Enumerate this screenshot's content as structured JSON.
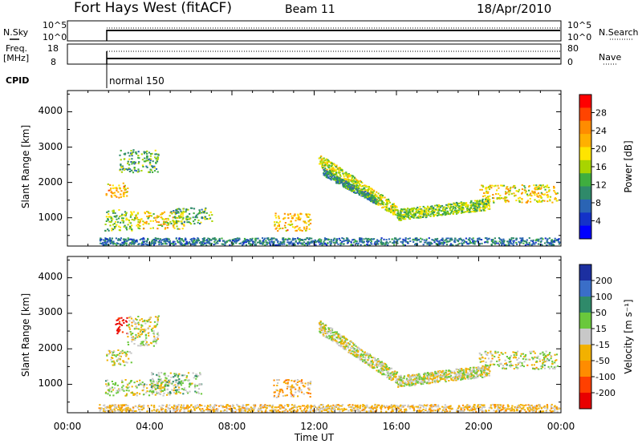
{
  "header": {
    "station": "Fort Hays West (fitACF)",
    "beam": "Beam 11",
    "date": "18/Apr/2010"
  },
  "top_panels": {
    "nsky_label": "N.Sky",
    "nsky_ticks": [
      "10^5",
      "10^0"
    ],
    "nsearch_label": "N.Search",
    "nsearch_ticks": [
      "10^5",
      "10^0"
    ],
    "freq_label_1": "Freq.",
    "freq_label_2": "[MHz]",
    "freq_ticks": [
      "18",
      "8"
    ],
    "nave_label": "Nave",
    "nave_ticks": [
      "80",
      "0"
    ],
    "cpid_label": "CPID",
    "cpid_value": "normal 150"
  },
  "time_axis": {
    "label": "Time UT",
    "ticks": [
      "00:00",
      "04:00",
      "08:00",
      "12:00",
      "16:00",
      "20:00",
      "00:00"
    ]
  },
  "colorbars": {
    "power": {
      "label": "Power [dB]",
      "ticks": [
        "28",
        "24",
        "20",
        "16",
        "12",
        "8",
        "4"
      ],
      "colors": [
        "#ff0000",
        "#ff4400",
        "#ff8c00",
        "#ffb000",
        "#ffe400",
        "#a8d400",
        "#3fae3f",
        "#2f8a6a",
        "#2a64b4",
        "#1432c8",
        "#0000ff"
      ]
    },
    "velocity": {
      "label": "Velocity [m s⁻¹]",
      "ticks": [
        "200",
        "100",
        "50",
        "15",
        "-15",
        "-50",
        "-100",
        "-200"
      ],
      "colors": [
        "#1c2fa0",
        "#3a6ec8",
        "#2f8a6a",
        "#6ac83c",
        "#c8c8c8",
        "#f2b100",
        "#ff8c00",
        "#ff4000",
        "#e80000"
      ]
    }
  },
  "chart_data": [
    {
      "type": "heatmap",
      "panel": "power",
      "ylabel": "Slant Range [km]",
      "yticks": [
        "4000",
        "3000",
        "2000",
        "1000"
      ],
      "ylim": [
        200,
        4600
      ],
      "xlim_hours": [
        0,
        24
      ],
      "colorbar_label": "Power [dB]",
      "clim": [
        0,
        30
      ],
      "blobs": [
        {
          "t0": 1.85,
          "t1": 2.9,
          "r0": 1550,
          "r1": 2000,
          "v": 20
        },
        {
          "t0": 2.5,
          "t1": 4.4,
          "r0": 2300,
          "r1": 2950,
          "v": 12
        },
        {
          "t0": 1.8,
          "t1": 3.2,
          "r0": 650,
          "r1": 1250,
          "v": 14
        },
        {
          "t0": 3.2,
          "t1": 5.7,
          "r0": 700,
          "r1": 1200,
          "v": 18
        },
        {
          "t0": 5.0,
          "t1": 7.0,
          "r0": 850,
          "r1": 1300,
          "v": 12
        },
        {
          "t0": 10.0,
          "t1": 11.8,
          "r0": 650,
          "r1": 1150,
          "v": 20
        },
        {
          "t0": 20.0,
          "t1": 23.8,
          "r0": 1450,
          "r1": 1950,
          "v": 18
        }
      ],
      "arcs": [
        {
          "t0": 12.2,
          "t1": 16.0,
          "ra": 2650,
          "rb": 1200,
          "w": 180,
          "v": 16
        },
        {
          "t0": 16.0,
          "t1": 20.5,
          "ra": 1100,
          "rb": 1400,
          "w": 160,
          "v": 14
        },
        {
          "t0": 12.4,
          "t1": 15.0,
          "ra": 2300,
          "rb": 1500,
          "w": 100,
          "v": 10
        }
      ],
      "ground_scatter_band": {
        "t0": 1.5,
        "t1": 24,
        "r0": 200,
        "r1": 450,
        "v": 8
      }
    },
    {
      "type": "heatmap",
      "panel": "velocity",
      "ylabel": "Slant Range [km]",
      "yticks": [
        "4000",
        "3000",
        "2000",
        "1000"
      ],
      "ylim": [
        200,
        4600
      ],
      "xlim_hours": [
        0,
        24
      ],
      "colorbar_label": "Velocity [m s⁻¹]",
      "clim": [
        -250,
        250
      ],
      "blobs": [
        {
          "t0": 1.85,
          "t1": 3.1,
          "r0": 1550,
          "r1": 2000,
          "v": 0
        },
        {
          "t0": 2.3,
          "t1": 2.9,
          "r0": 2450,
          "r1": 2900,
          "v": -220
        },
        {
          "t0": 2.9,
          "t1": 4.4,
          "r0": 2100,
          "r1": 2950,
          "v": 0
        },
        {
          "t0": 1.8,
          "t1": 5.0,
          "r0": 700,
          "r1": 1150,
          "v": 10
        },
        {
          "t0": 4.0,
          "t1": 6.5,
          "r0": 750,
          "r1": 1350,
          "v": 40
        },
        {
          "t0": 10.0,
          "t1": 11.8,
          "r0": 650,
          "r1": 1150,
          "v": -60
        },
        {
          "t0": 20.0,
          "t1": 23.8,
          "r0": 1450,
          "r1": 1950,
          "v": 0
        }
      ],
      "arcs": [
        {
          "t0": 12.2,
          "t1": 16.0,
          "ra": 2650,
          "rb": 1200,
          "w": 180,
          "v": 0
        },
        {
          "t0": 16.0,
          "t1": 20.5,
          "ra": 1100,
          "rb": 1400,
          "w": 160,
          "v": 0
        }
      ],
      "ground_scatter_band": {
        "t0": 1.5,
        "t1": 24,
        "r0": 200,
        "r1": 450,
        "v": -40
      }
    }
  ]
}
